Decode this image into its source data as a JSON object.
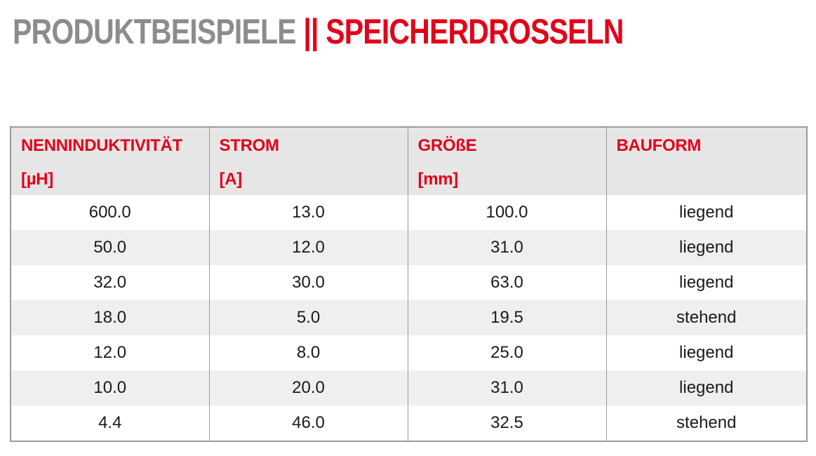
{
  "heading": {
    "part1": "PRODUKTBEISPIELE",
    "separator": "||",
    "part2": "SPEICHERDROSSELN"
  },
  "colors": {
    "accent": "#e2001a",
    "heading_gray": "#8c8c8c",
    "header_bg": "#e6e6e6",
    "row_alt_bg": "#efefef",
    "border": "#9a9a9a"
  },
  "table": {
    "columns": [
      {
        "label": "NENNINDUKTIVITÄT",
        "unit": "[µH]"
      },
      {
        "label": "STROM",
        "unit": "[A]"
      },
      {
        "label": "GRÖßE",
        "unit": "[mm]"
      },
      {
        "label": "BAUFORM",
        "unit": ""
      }
    ],
    "rows": [
      [
        "600.0",
        "13.0",
        "100.0",
        "liegend"
      ],
      [
        "50.0",
        "12.0",
        "31.0",
        "liegend"
      ],
      [
        "32.0",
        "30.0",
        "63.0",
        "liegend"
      ],
      [
        "18.0",
        "5.0",
        "19.5",
        "stehend"
      ],
      [
        "12.0",
        "8.0",
        "25.0",
        "liegend"
      ],
      [
        "10.0",
        "20.0",
        "31.0",
        "liegend"
      ],
      [
        "4.4",
        "46.0",
        "32.5",
        "stehend"
      ]
    ]
  }
}
